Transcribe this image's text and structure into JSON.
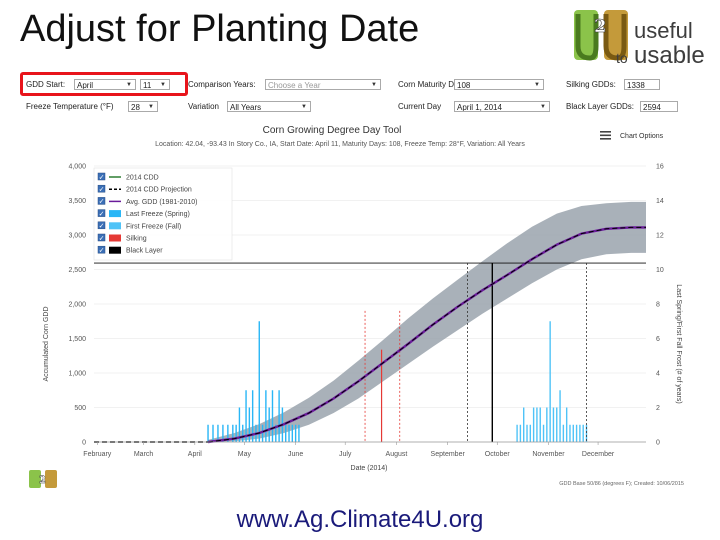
{
  "slide": {
    "title": "Adjust for Planting Date",
    "footer_url": "www.Ag.Climate4U.org"
  },
  "logo": {
    "mark": "U2U",
    "useful": "useful",
    "to": "to",
    "usable": "usable"
  },
  "controls": {
    "gdd_start_label": "GDD Start:",
    "gdd_start_month": "April",
    "gdd_start_day": "11",
    "comparison_label": "Comparison Years:",
    "comparison_placeholder": "Choose a Year",
    "maturity_label": "Corn Maturity Days:",
    "maturity_value": "108",
    "silking_label": "Silking GDDs:",
    "silking_value": "1338",
    "freeze_label": "Freeze Temperature (°F)",
    "freeze_value": "28",
    "variation_label": "Variation",
    "variation_value": "All Years",
    "current_day_label": "Current Day",
    "current_day_value": "April 1, 2014",
    "black_layer_label": "Black Layer GDDs:",
    "black_layer_value": "2594"
  },
  "chart_data": {
    "type": "line",
    "title": "Corn Growing Degree Day Tool",
    "subtitle": "Location: 42.04, -93.43 In Story Co., IA, Start Date: April 11, Maturity Days: 108, Freeze Temp: 28°F, Variation: All Years",
    "chart_options_label": "Chart Options",
    "xlabel": "Date (2014)",
    "ylabel": "Accumulated Corn GDD",
    "y2label": "Last Spring/First Fall Frost (# of years)",
    "x_ticks": [
      "February",
      "March",
      "April",
      "May",
      "June",
      "July",
      "August",
      "September",
      "October",
      "November",
      "December"
    ],
    "y_ticks": [
      0,
      500,
      1000,
      1500,
      2000,
      2500,
      3000,
      3500,
      4000
    ],
    "y_tick_labels": [
      "0",
      "500",
      "1,000",
      "1,500",
      "2,000",
      "2,500",
      "3,000",
      "3,500",
      "4,000"
    ],
    "y2_ticks": [
      0,
      2,
      4,
      6,
      8,
      10,
      12,
      14,
      16
    ],
    "ylim": [
      0,
      4000
    ],
    "y2lim": [
      0,
      16
    ],
    "xlim_days": [
      0,
      334
    ],
    "legend_position": "top-left",
    "grid": true,
    "legend": [
      {
        "name": "2014 CDD",
        "style": "line",
        "color": "#2e7d32"
      },
      {
        "name": "2014 CDD Projection",
        "style": "dash",
        "color": "#000000"
      },
      {
        "name": "Avg. GDD (1981-2010)",
        "style": "line",
        "color": "#6a1b9a"
      },
      {
        "name": "Last Freeze (Spring)",
        "style": "box",
        "color": "#29b6f6"
      },
      {
        "name": "First Freeze (Fall)",
        "style": "box",
        "color": "#4fc3f7"
      },
      {
        "name": "Silking",
        "style": "box",
        "color": "#e53935"
      },
      {
        "name": "Black Layer",
        "style": "box",
        "color": "#000000"
      }
    ],
    "avg_gdd": {
      "days": [
        69,
        85,
        100,
        115,
        130,
        145,
        160,
        175,
        190,
        205,
        220,
        235,
        250,
        265,
        280,
        295,
        310,
        325,
        334
      ],
      "values": [
        0,
        50,
        130,
        260,
        420,
        630,
        880,
        1150,
        1420,
        1700,
        1960,
        2200,
        2420,
        2650,
        2860,
        3020,
        3090,
        3110,
        3110
      ]
    },
    "band": {
      "days": [
        69,
        85,
        100,
        115,
        130,
        145,
        160,
        175,
        190,
        205,
        220,
        235,
        250,
        265,
        280,
        295,
        310,
        325,
        334
      ],
      "upper": [
        30,
        130,
        260,
        430,
        640,
        890,
        1180,
        1480,
        1790,
        2080,
        2350,
        2620,
        2880,
        3120,
        3310,
        3420,
        3460,
        3480,
        3480
      ],
      "lower": [
        0,
        10,
        50,
        130,
        250,
        420,
        630,
        880,
        1130,
        1380,
        1620,
        1860,
        2080,
        2300,
        2500,
        2650,
        2720,
        2740,
        2740
      ]
    },
    "silking": {
      "gdd": 1338,
      "day": 174,
      "range_days": [
        164,
        185
      ]
    },
    "black_layer": {
      "gdd": 2594,
      "day": 241,
      "range_days": [
        226,
        298
      ]
    },
    "spring_freeze": {
      "days": [
        69,
        72,
        75,
        78,
        81,
        84,
        86,
        88,
        90,
        92,
        94,
        96,
        98,
        100,
        102,
        104,
        106,
        108,
        110,
        112,
        114,
        116,
        118,
        120,
        122,
        124
      ],
      "counts": [
        1,
        1,
        1,
        1,
        1,
        1,
        1,
        2,
        1,
        3,
        2,
        3,
        1,
        7,
        1,
        3,
        2,
        3,
        1,
        3,
        2,
        1,
        1,
        1,
        1,
        1
      ]
    },
    "fall_freeze": {
      "days": [
        256,
        258,
        260,
        262,
        264,
        266,
        268,
        270,
        272,
        274,
        276,
        278,
        280,
        282,
        284,
        286,
        288,
        290,
        292,
        294,
        296,
        298
      ],
      "counts": [
        1,
        1,
        2,
        1,
        1,
        2,
        2,
        2,
        1,
        2,
        7,
        2,
        2,
        3,
        1,
        2,
        1,
        1,
        1,
        1,
        1,
        1
      ]
    }
  },
  "chart_footer": {
    "credit": "GDD Base 50/86 (degrees F); Created: 10/06/2015"
  }
}
